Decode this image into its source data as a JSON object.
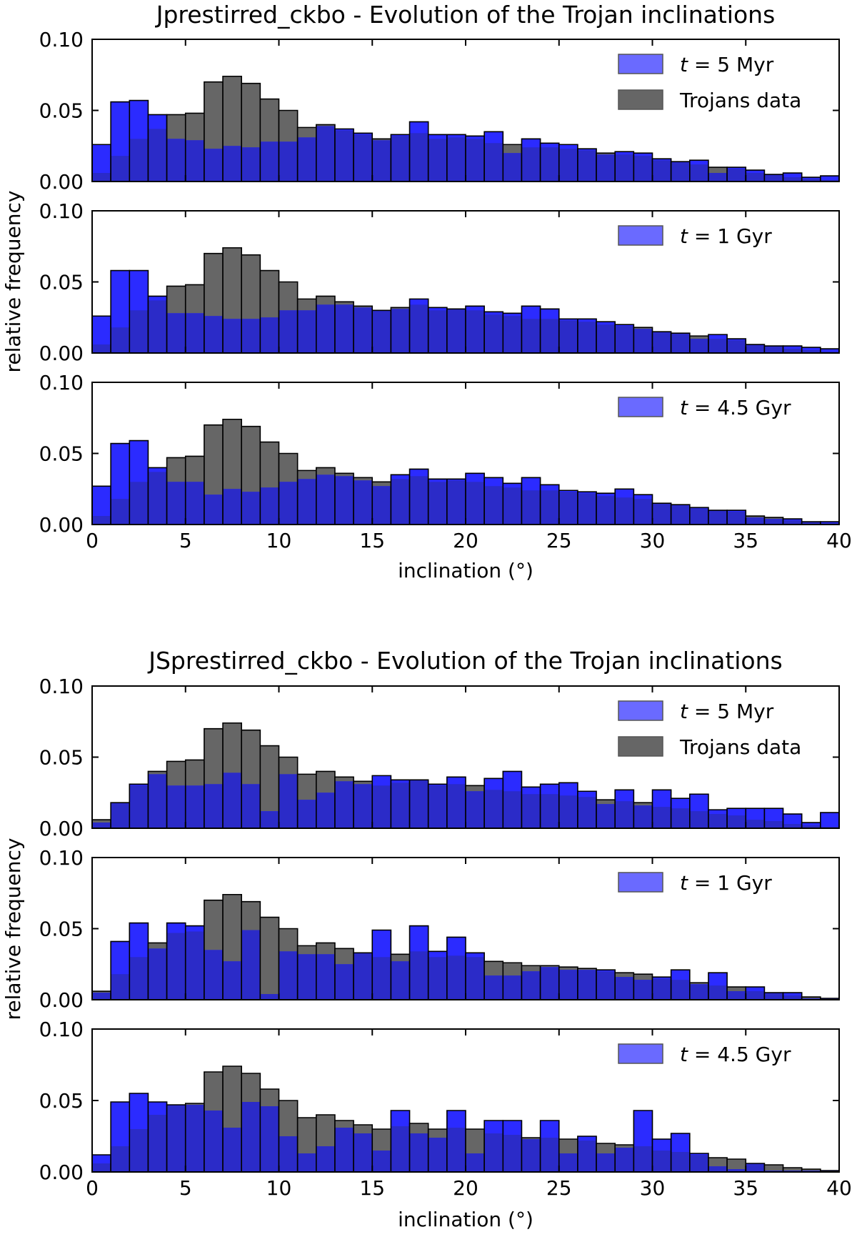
{
  "figure": {
    "xlabel": "inclination (°)",
    "ylabel": "relative frequency"
  },
  "colors": {
    "trojans": "#666666",
    "sim": "#2b2bff",
    "overlap": "#2b2bc8",
    "edge": "#000000"
  },
  "chart_data": [
    {
      "type": "bar",
      "title": "Jprestirred_ckbo - Evolution of the Trojan inclinations",
      "xlabel": "inclination (°)",
      "ylabel": "relative frequency",
      "xlim": [
        0,
        40
      ],
      "ylim": [
        0,
        0.1
      ],
      "xticks": [
        "0",
        "5",
        "10",
        "15",
        "20",
        "25",
        "30",
        "35",
        "40"
      ],
      "yticks": [
        "0.00",
        "0.05",
        "0.10"
      ],
      "bin_width": 1,
      "bin_starts": [
        0,
        1,
        2,
        3,
        4,
        5,
        6,
        7,
        8,
        9,
        10,
        11,
        12,
        13,
        14,
        15,
        16,
        17,
        18,
        19,
        20,
        21,
        22,
        23,
        24,
        25,
        26,
        27,
        28,
        29,
        30,
        31,
        32,
        33,
        34,
        35,
        36,
        37,
        38,
        39
      ],
      "trojans_data": [
        0.006,
        0.018,
        0.03,
        0.037,
        0.047,
        0.048,
        0.07,
        0.074,
        0.069,
        0.058,
        0.05,
        0.038,
        0.04,
        0.036,
        0.033,
        0.03,
        0.032,
        0.034,
        0.03,
        0.031,
        0.03,
        0.027,
        0.026,
        0.024,
        0.024,
        0.023,
        0.022,
        0.02,
        0.019,
        0.018,
        0.015,
        0.014,
        0.012,
        0.01,
        0.009,
        0.006,
        0.005,
        0.003,
        0.002,
        0.001
      ],
      "panels": [
        {
          "legend": [
            "t = 5 Myr",
            "Trojans data"
          ],
          "values": [
            0.026,
            0.056,
            0.057,
            0.047,
            0.03,
            0.029,
            0.023,
            0.025,
            0.024,
            0.028,
            0.028,
            0.031,
            0.039,
            0.037,
            0.034,
            0.029,
            0.033,
            0.042,
            0.033,
            0.033,
            0.032,
            0.035,
            0.02,
            0.03,
            0.027,
            0.026,
            0.023,
            0.019,
            0.021,
            0.02,
            0.016,
            0.014,
            0.015,
            0.006,
            0.01,
            0.008,
            0.005,
            0.006,
            0.003,
            0.004
          ]
        },
        {
          "legend": [
            "t = 1 Gyr"
          ],
          "values": [
            0.026,
            0.058,
            0.058,
            0.04,
            0.028,
            0.028,
            0.026,
            0.024,
            0.024,
            0.025,
            0.03,
            0.03,
            0.034,
            0.034,
            0.032,
            0.03,
            0.031,
            0.038,
            0.032,
            0.031,
            0.033,
            0.029,
            0.028,
            0.033,
            0.031,
            0.024,
            0.024,
            0.022,
            0.02,
            0.017,
            0.015,
            0.014,
            0.01,
            0.013,
            0.01,
            0.006,
            0.005,
            0.005,
            0.004,
            0.003
          ]
        },
        {
          "legend": [
            "t = 4.5 Gyr"
          ],
          "values": [
            0.027,
            0.057,
            0.059,
            0.04,
            0.03,
            0.03,
            0.021,
            0.025,
            0.023,
            0.026,
            0.03,
            0.032,
            0.035,
            0.034,
            0.031,
            0.027,
            0.035,
            0.039,
            0.032,
            0.032,
            0.036,
            0.033,
            0.029,
            0.033,
            0.028,
            0.024,
            0.023,
            0.022,
            0.025,
            0.021,
            0.015,
            0.014,
            0.012,
            0.01,
            0.01,
            0.005,
            0.004,
            0.004,
            0.002,
            0.002
          ]
        }
      ]
    },
    {
      "type": "bar",
      "title": "JSprestirred_ckbo - Evolution of the Trojan inclinations",
      "xlabel": "inclination (°)",
      "ylabel": "relative frequency",
      "xlim": [
        0,
        40
      ],
      "ylim": [
        0,
        0.1
      ],
      "xticks": [
        "0",
        "5",
        "10",
        "15",
        "20",
        "25",
        "30",
        "35",
        "40"
      ],
      "yticks": [
        "0.00",
        "0.05",
        "0.10"
      ],
      "bin_width": 1,
      "bin_starts": [
        0,
        1,
        2,
        3,
        4,
        5,
        6,
        7,
        8,
        9,
        10,
        11,
        12,
        13,
        14,
        15,
        16,
        17,
        18,
        19,
        20,
        21,
        22,
        23,
        24,
        25,
        26,
        27,
        28,
        29,
        30,
        31,
        32,
        33,
        34,
        35,
        36,
        37,
        38,
        39
      ],
      "trojans_data": [
        0.006,
        0.018,
        0.03,
        0.04,
        0.047,
        0.048,
        0.07,
        0.074,
        0.069,
        0.058,
        0.05,
        0.038,
        0.04,
        0.036,
        0.033,
        0.03,
        0.032,
        0.034,
        0.03,
        0.031,
        0.03,
        0.027,
        0.026,
        0.024,
        0.024,
        0.023,
        0.022,
        0.02,
        0.019,
        0.018,
        0.015,
        0.014,
        0.012,
        0.01,
        0.009,
        0.006,
        0.005,
        0.003,
        0.002,
        0.001
      ],
      "panels": [
        {
          "legend": [
            "t = 5 Myr",
            "Trojans data"
          ],
          "values": [
            0.004,
            0.018,
            0.031,
            0.038,
            0.03,
            0.03,
            0.031,
            0.039,
            0.031,
            0.012,
            0.038,
            0.02,
            0.025,
            0.033,
            0.031,
            0.037,
            0.034,
            0.034,
            0.031,
            0.036,
            0.026,
            0.035,
            0.04,
            0.029,
            0.031,
            0.032,
            0.026,
            0.017,
            0.027,
            0.016,
            0.027,
            0.021,
            0.024,
            0.013,
            0.014,
            0.014,
            0.014,
            0.01,
            0.004,
            0.011
          ]
        },
        {
          "legend": [
            "t = 1 Gyr"
          ],
          "values": [
            0.005,
            0.041,
            0.054,
            0.036,
            0.054,
            0.052,
            0.035,
            0.027,
            0.049,
            0.004,
            0.034,
            0.032,
            0.032,
            0.025,
            0.033,
            0.049,
            0.027,
            0.052,
            0.034,
            0.044,
            0.033,
            0.017,
            0.017,
            0.02,
            0.023,
            0.021,
            0.021,
            0.021,
            0.016,
            0.014,
            0.016,
            0.021,
            0.011,
            0.019,
            0.006,
            0.009,
            0.005,
            0.005,
            0.001,
            0.001
          ]
        },
        {
          "legend": [
            "t = 4.5 Gyr"
          ],
          "values": [
            0.012,
            0.049,
            0.055,
            0.049,
            0.047,
            0.047,
            0.043,
            0.031,
            0.049,
            0.046,
            0.025,
            0.013,
            0.018,
            0.031,
            0.027,
            0.015,
            0.043,
            0.027,
            0.024,
            0.043,
            0.013,
            0.036,
            0.036,
            0.023,
            0.036,
            0.013,
            0.025,
            0.013,
            0.017,
            0.043,
            0.023,
            0.027,
            0.013,
            0.004,
            0.002,
            0.006,
            0.001,
            0.001,
            0.001,
            0.001
          ]
        }
      ]
    }
  ]
}
